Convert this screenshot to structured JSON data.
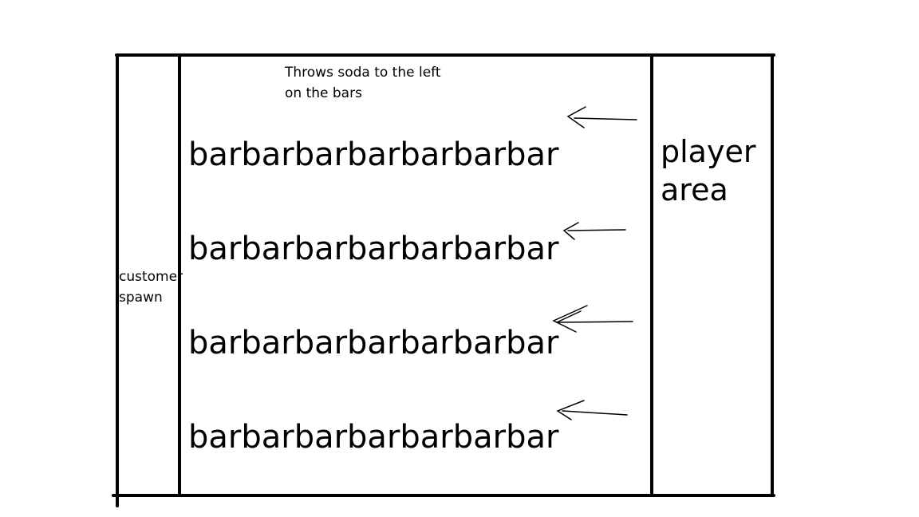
{
  "diagram": {
    "zones": {
      "customer_spawn": "customer\nspawn",
      "player_area": "player\narea"
    },
    "note": "Throws soda to the left\non the bars",
    "bars": [
      {
        "label": "barbarbarbarbarbarbar"
      },
      {
        "label": "barbarbarbarbarbarbar"
      },
      {
        "label": "barbarbarbarbarbarbar"
      },
      {
        "label": "barbarbarbarbarbarbar"
      }
    ],
    "arrows": [
      {
        "direction": "left"
      },
      {
        "direction": "left"
      },
      {
        "direction": "left"
      },
      {
        "direction": "left"
      }
    ],
    "colors": {
      "ink": "#000000",
      "background": "#ffffff"
    }
  }
}
